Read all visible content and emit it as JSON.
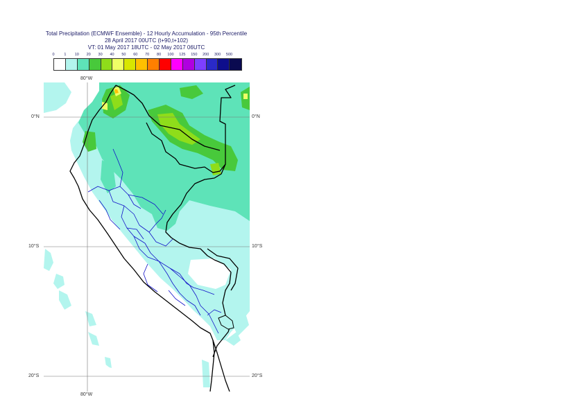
{
  "header": {
    "title_line1": "Total Precipitation (ECMWF Ensemble) - 12 Hourly Accumulation - 95th Percentile",
    "title_line2": "28 April 2017 00UTC (t+90,t+102)",
    "title_line3": "VT: 01 May 2017 18UTC - 02 May 2017 06UTC"
  },
  "legend": {
    "thresholds": [
      "0",
      "1",
      "10",
      "20",
      "30",
      "40",
      "50",
      "60",
      "70",
      "80",
      "100",
      "125",
      "150",
      "200",
      "300",
      "500"
    ],
    "colors": [
      "#ffffff",
      "#b3f5ee",
      "#5ee3b8",
      "#48c93b",
      "#8fdd1a",
      "#f0ff66",
      "#d8e600",
      "#ffc000",
      "#ff7f00",
      "#ff0000",
      "#ff00ff",
      "#b000e0",
      "#7d3fff",
      "#2a2ac8",
      "#0e0e8c",
      "#0a0a50"
    ]
  },
  "map": {
    "lat_labels": [
      "0°N",
      "10°S",
      "20°S"
    ],
    "lon_labels": [
      "80°W",
      "80°W"
    ]
  }
}
